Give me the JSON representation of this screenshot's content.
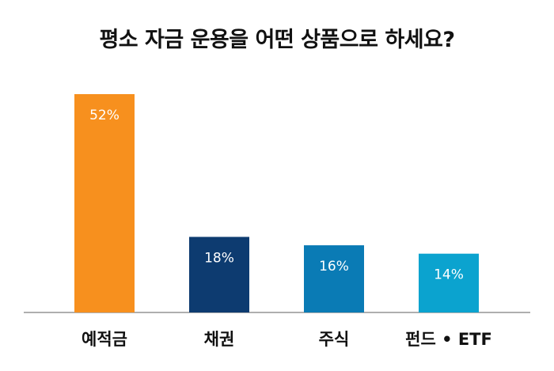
{
  "chart_data": {
    "type": "bar",
    "title": "평소 자금 운용을 어떤 상품으로 하세요?",
    "categories": [
      "예적금",
      "채권",
      "주식",
      "펀드 • ETF"
    ],
    "values": [
      52,
      18,
      16,
      14
    ],
    "value_labels": [
      "52%",
      "18%",
      "16%",
      "14%"
    ],
    "colors": [
      "#F7901E",
      "#0D3B70",
      "#0A7BB5",
      "#0BA3CF"
    ],
    "ylim": [
      0,
      56
    ],
    "grid": false,
    "legend": "none"
  }
}
